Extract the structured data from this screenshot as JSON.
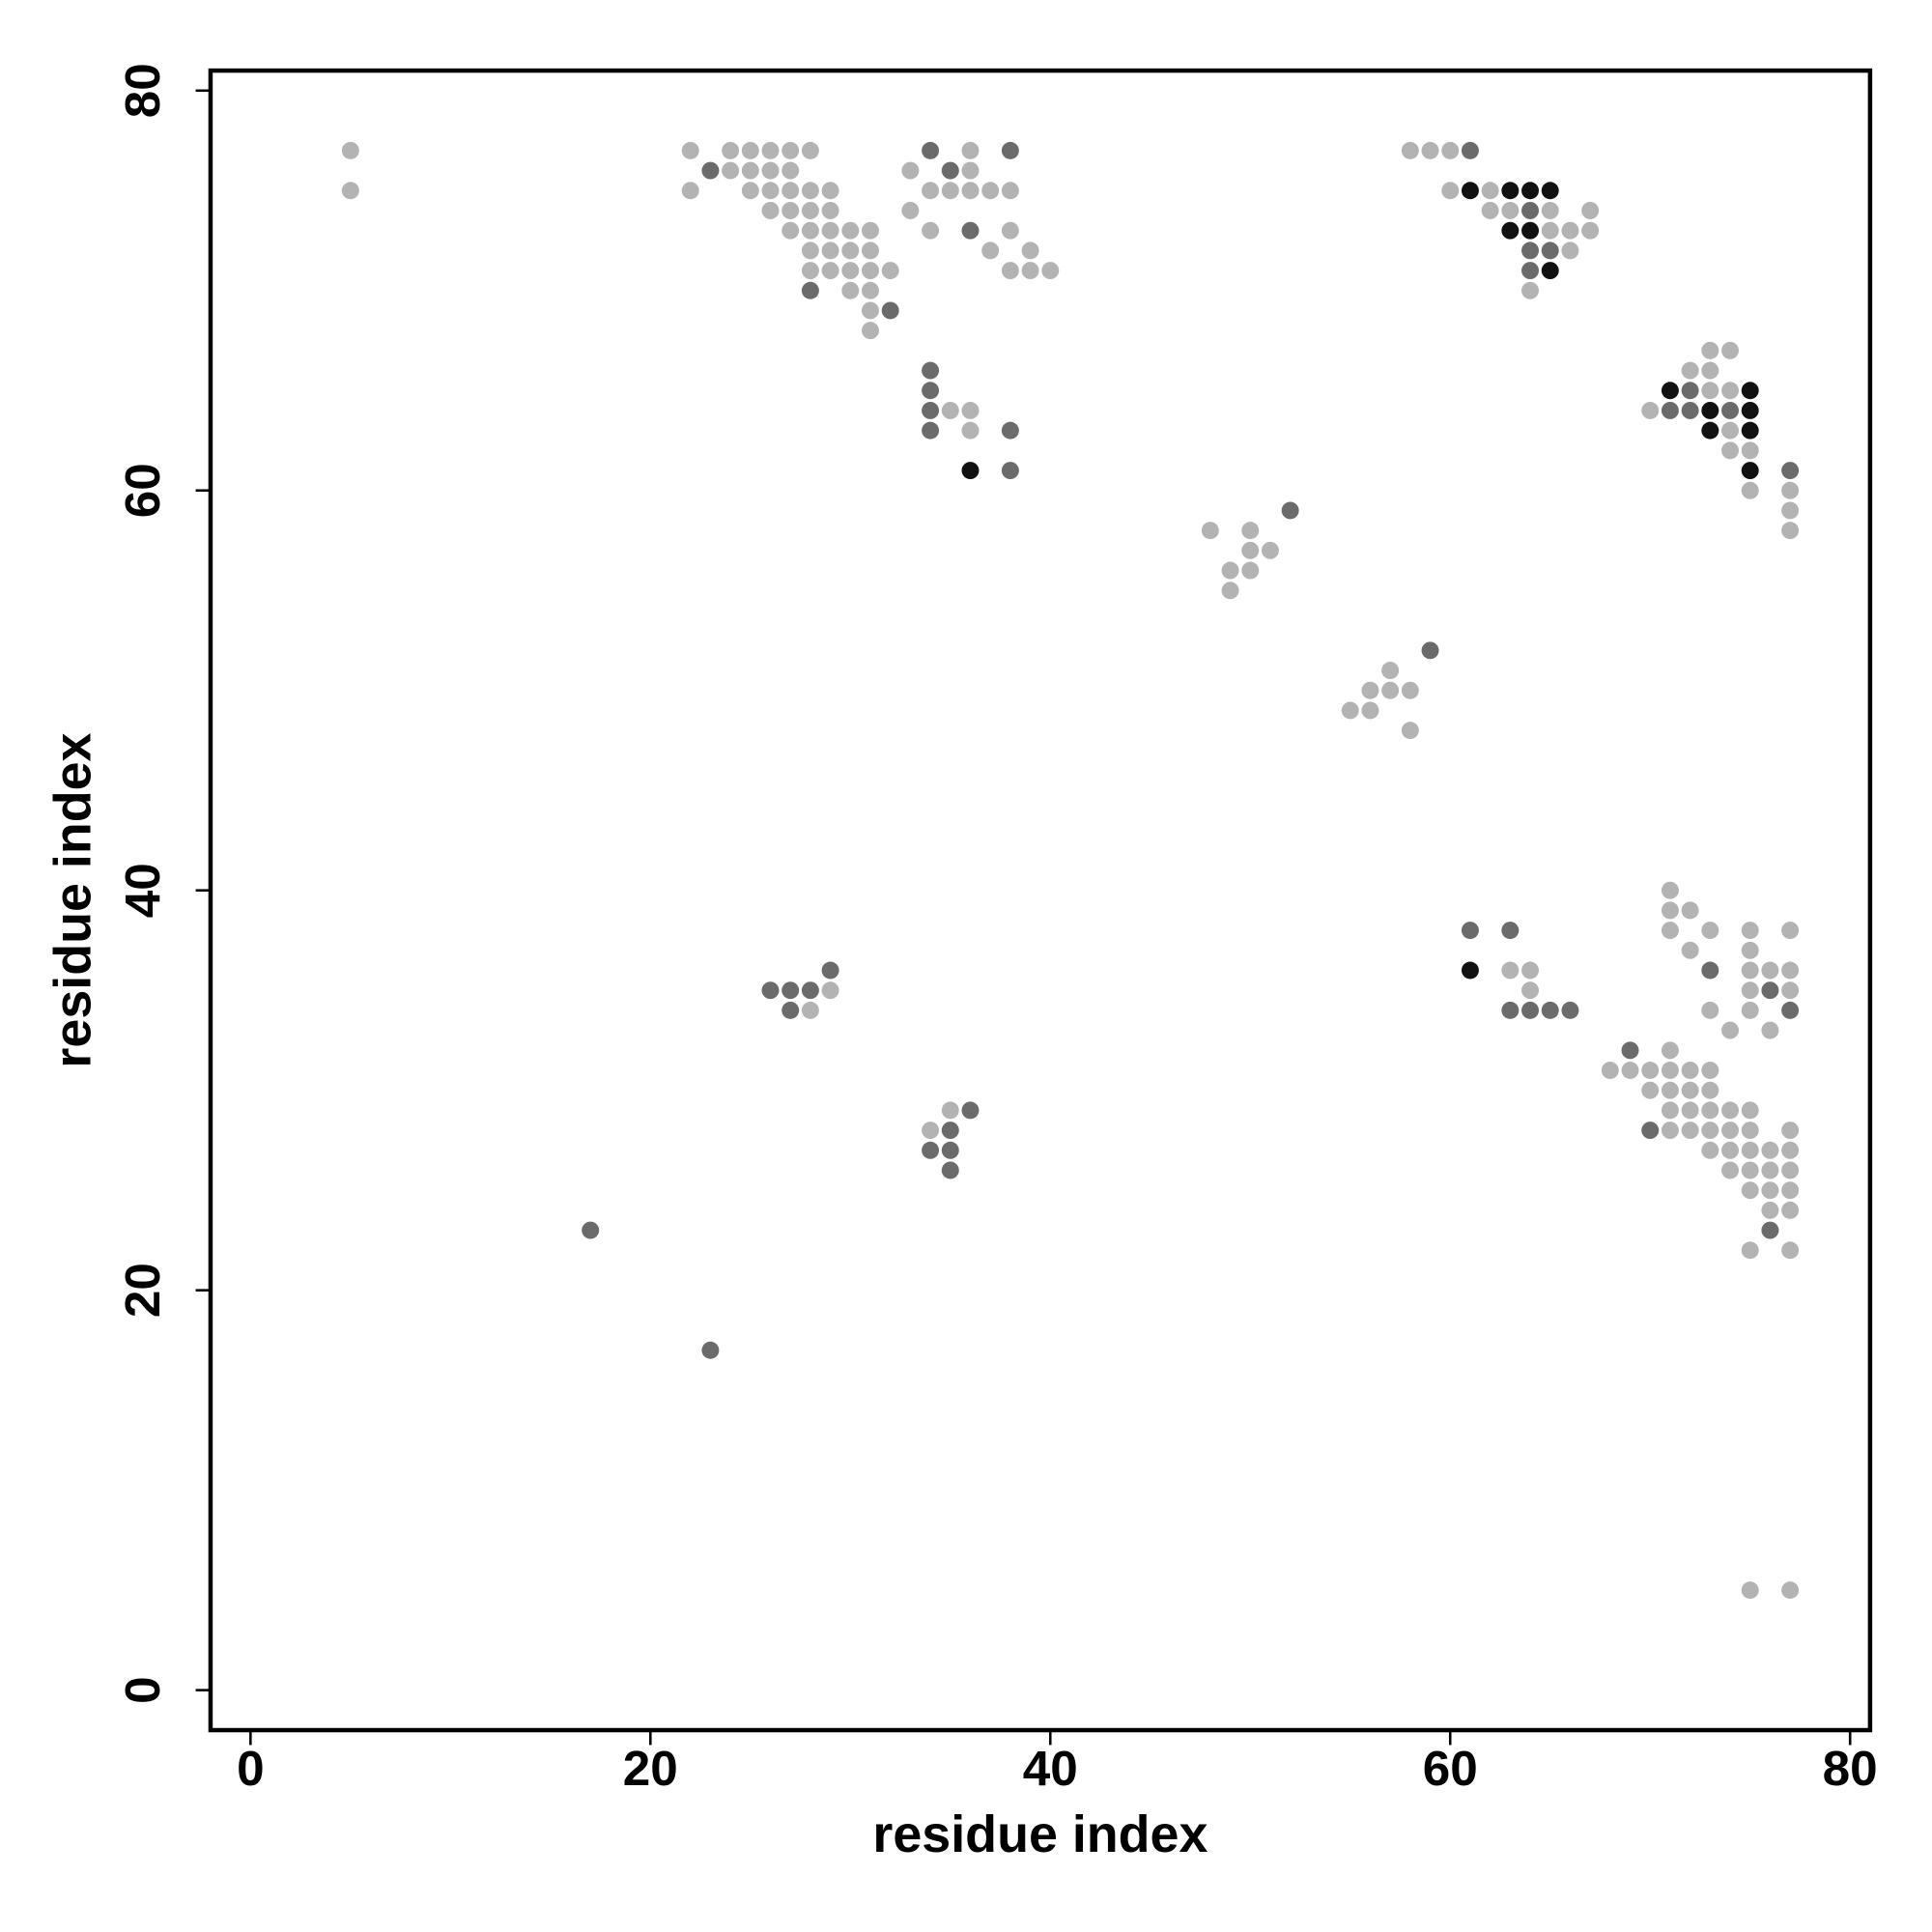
{
  "chart_data": {
    "type": "scatter",
    "x_label": "residue index",
    "y_label": "residue index",
    "xlim": [
      -2,
      81
    ],
    "ylim": [
      -2,
      81
    ],
    "xticks": [
      0,
      20,
      40,
      60,
      80
    ],
    "yticks": [
      0,
      20,
      40,
      60,
      80
    ],
    "series": [
      {
        "color": "#b3b3b3",
        "x": [
          5,
          22,
          24,
          25,
          26,
          27,
          28,
          36,
          58,
          59,
          60,
          24,
          25,
          26,
          27,
          33,
          36,
          5,
          22,
          25,
          26,
          27,
          28,
          29,
          34,
          35,
          36,
          37,
          38,
          60,
          62,
          26,
          27,
          28,
          29,
          33,
          62,
          63,
          65,
          67,
          27,
          28,
          29,
          30,
          31,
          34,
          38,
          65,
          66,
          67,
          28,
          29,
          30,
          31,
          37,
          39,
          66,
          28,
          29,
          30,
          31,
          32,
          38,
          39,
          40,
          30,
          31,
          64,
          31,
          31,
          73,
          74,
          72,
          73,
          73,
          74,
          35,
          36,
          70,
          36,
          74,
          74,
          75,
          75,
          77,
          77,
          48,
          50,
          77,
          50,
          51,
          49,
          50,
          49,
          57,
          56,
          57,
          58,
          55,
          56,
          58,
          71,
          71,
          72,
          71,
          73,
          75,
          77,
          72,
          75,
          63,
          64,
          75,
          76,
          77,
          29,
          64,
          75,
          77,
          28,
          73,
          75,
          74,
          76,
          71,
          68,
          69,
          70,
          71,
          72,
          73,
          70,
          71,
          72,
          73,
          35,
          71,
          72,
          73,
          74,
          75,
          34,
          71,
          72,
          73,
          74,
          75,
          77,
          73,
          74,
          75,
          76,
          77,
          74,
          75,
          76,
          77,
          75,
          76,
          77,
          76,
          77,
          75,
          77,
          75,
          77
        ],
        "y": [
          77,
          77,
          77,
          77,
          77,
          77,
          77,
          77,
          77,
          77,
          77,
          76,
          76,
          76,
          76,
          76,
          76,
          75,
          75,
          75,
          75,
          75,
          75,
          75,
          75,
          75,
          75,
          75,
          75,
          75,
          75,
          74,
          74,
          74,
          74,
          74,
          74,
          74,
          74,
          74,
          73,
          73,
          73,
          73,
          73,
          73,
          73,
          73,
          73,
          73,
          72,
          72,
          72,
          72,
          72,
          72,
          72,
          71,
          71,
          71,
          71,
          71,
          71,
          71,
          71,
          70,
          70,
          70,
          69,
          68,
          67,
          67,
          66,
          66,
          65,
          65,
          64,
          64,
          64,
          63,
          63,
          62,
          62,
          60,
          60,
          59,
          58,
          58,
          58,
          57,
          57,
          56,
          56,
          55,
          51,
          50,
          50,
          50,
          49,
          49,
          48,
          40,
          39,
          39,
          38,
          38,
          38,
          38,
          37,
          37,
          36,
          36,
          36,
          36,
          36,
          35,
          35,
          35,
          35,
          34,
          34,
          34,
          33,
          33,
          32,
          31,
          31,
          31,
          31,
          31,
          31,
          30,
          30,
          30,
          30,
          29,
          29,
          29,
          29,
          29,
          29,
          28,
          28,
          28,
          28,
          28,
          28,
          28,
          27,
          27,
          27,
          27,
          27,
          26,
          26,
          26,
          26,
          25,
          25,
          25,
          24,
          24,
          22,
          22,
          5,
          5
        ]
      },
      {
        "color": "#6b6b6b",
        "x": [
          34,
          38,
          61,
          23,
          35,
          64,
          36,
          64,
          65,
          64,
          28,
          32,
          34,
          34,
          72,
          34,
          71,
          72,
          74,
          34,
          38,
          38,
          77,
          52,
          59,
          61,
          63,
          29,
          73,
          26,
          27,
          28,
          76,
          27,
          63,
          64,
          65,
          66,
          77,
          69,
          36,
          35,
          70,
          34,
          35,
          35,
          17,
          76,
          23
        ],
        "y": [
          77,
          77,
          77,
          76,
          76,
          74,
          73,
          72,
          72,
          71,
          70,
          69,
          66,
          65,
          65,
          64,
          64,
          64,
          64,
          63,
          63,
          61,
          61,
          59,
          52,
          38,
          38,
          36,
          36,
          35,
          35,
          35,
          35,
          34,
          34,
          34,
          34,
          34,
          34,
          32,
          29,
          28,
          28,
          27,
          27,
          26,
          23,
          23,
          17
        ]
      },
      {
        "color": "#111111",
        "x": [
          61,
          63,
          64,
          65,
          63,
          64,
          65,
          71,
          75,
          73,
          75,
          73,
          75,
          36,
          75,
          61
        ],
        "y": [
          75,
          75,
          75,
          75,
          73,
          73,
          71,
          65,
          65,
          64,
          64,
          63,
          63,
          61,
          61,
          36
        ]
      }
    ]
  }
}
